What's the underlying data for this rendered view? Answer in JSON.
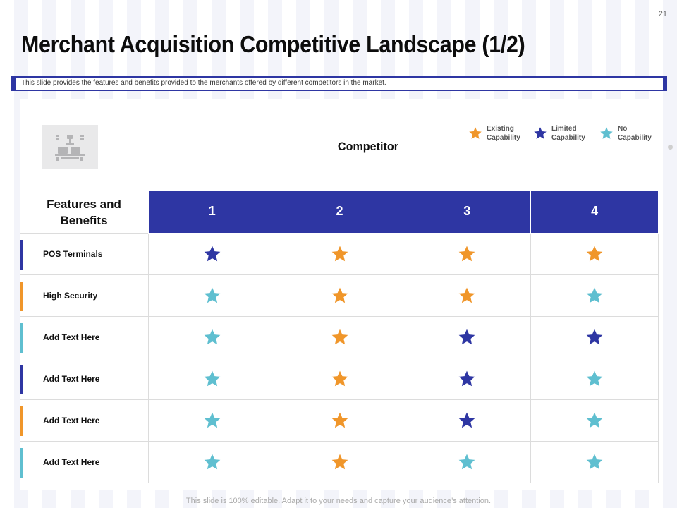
{
  "slide": {
    "page_number": "21",
    "title": "Merchant Acquisition Competitive Landscape (1/2)",
    "subtitle": "This slide provides the features and benefits provided to the merchants offered by different competitors in the market.",
    "footer": "This slide is 100% editable. Adapt it to your needs and capture your audience’s attention."
  },
  "colors": {
    "existing": "#f0962a",
    "limited": "#2e36a3",
    "none": "#5fbfd0"
  },
  "legend": [
    {
      "key": "existing",
      "label": "Existing\nCapability",
      "icon": "star-icon"
    },
    {
      "key": "limited",
      "label": "Limited\nCapability",
      "icon": "star-icon"
    },
    {
      "key": "none",
      "label": "No\nCapability",
      "icon": "star-icon"
    }
  ],
  "competitor_label": "Competitor",
  "table": {
    "features_header": "Features and\nBenefits",
    "columns": [
      "1",
      "2",
      "3",
      "4"
    ],
    "rows": [
      {
        "label": "POS Terminals",
        "accent": "limited",
        "ratings": [
          "limited",
          "existing",
          "existing",
          "existing"
        ]
      },
      {
        "label": "High Security",
        "accent": "existing",
        "ratings": [
          "none",
          "existing",
          "existing",
          "none"
        ]
      },
      {
        "label": "Add Text Here",
        "accent": "none",
        "ratings": [
          "none",
          "existing",
          "limited",
          "limited"
        ]
      },
      {
        "label": "Add Text Here",
        "accent": "limited",
        "ratings": [
          "none",
          "existing",
          "limited",
          "none"
        ]
      },
      {
        "label": "Add Text Here",
        "accent": "existing",
        "ratings": [
          "none",
          "existing",
          "limited",
          "none"
        ]
      },
      {
        "label": "Add Text Here",
        "accent": "none",
        "ratings": [
          "none",
          "existing",
          "none",
          "none"
        ]
      }
    ]
  }
}
